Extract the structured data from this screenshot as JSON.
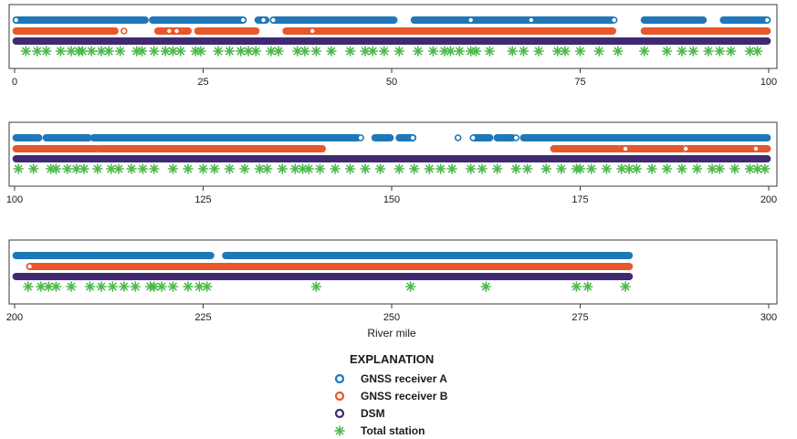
{
  "chart_data": {
    "type": "scatter",
    "xlabel": "River mile",
    "colors": {
      "gnss_a": "#1f77b8",
      "gnss_b": "#e8572a",
      "dsm": "#3f2a72",
      "total_station": "#4cba4a"
    },
    "legend": {
      "title": "EXPLANATION",
      "placement": "bottom-center",
      "items": [
        {
          "key": "gnss_a",
          "label": "GNSS receiver A",
          "marker": "open-circle"
        },
        {
          "key": "gnss_b",
          "label": "GNSS receiver B",
          "marker": "open-circle"
        },
        {
          "key": "dsm",
          "label": "DSM",
          "marker": "open-circle"
        },
        {
          "key": "total_station",
          "label": "Total station",
          "marker": "asterisk"
        }
      ]
    },
    "panels": [
      {
        "xlim": [
          0,
          100
        ],
        "ticks": [
          0,
          25,
          50,
          75,
          100
        ],
        "series": [
          {
            "key": "gnss_a",
            "segments": [
              [
                0.2,
                17.3
              ],
              [
                18.3,
                30.3
              ],
              [
                32.3,
                33.3
              ],
              [
                34.3,
                50.3
              ],
              [
                53.0,
                79.3
              ],
              [
                83.5,
                91.3
              ],
              [
                94.0,
                99.8
              ]
            ],
            "single_points": [
              0.2,
              30.3,
              33.0,
              34.3,
              60.5,
              68.5,
              79.5,
              99.8
            ]
          },
          {
            "key": "gnss_b",
            "segments": [
              [
                0.2,
                13.3
              ],
              [
                19.0,
                23.0
              ],
              [
                24.3,
                32.0
              ],
              [
                36.0,
                79.3
              ],
              [
                83.5,
                99.8
              ]
            ],
            "single_points": [
              14.5,
              20.5,
              21.5,
              39.5
            ]
          },
          {
            "key": "dsm",
            "segments": [
              [
                0.2,
                99.8
              ]
            ],
            "single_points": []
          }
        ],
        "total_station": [
          1.5,
          3.0,
          4.2,
          6.1,
          7.5,
          8.5,
          9.0,
          10.2,
          11.5,
          12.5,
          14.0,
          16.2,
          16.9,
          18.5,
          20.0,
          21.0,
          22.0,
          24.0,
          24.7,
          27.0,
          28.5,
          30.0,
          31.0,
          32.0,
          34.0,
          35.0,
          37.5,
          38.5,
          40.0,
          42.0,
          44.5,
          46.5,
          47.5,
          49.0,
          51.0,
          53.5,
          55.5,
          57.0,
          57.8,
          59.0,
          60.5,
          61.2,
          63.0,
          66.0,
          67.5,
          69.5,
          72.0,
          73.0,
          75.0,
          77.5,
          80.0,
          83.5,
          86.5,
          88.5,
          90.0,
          92.0,
          93.5,
          95.0,
          97.5,
          98.5
        ]
      },
      {
        "xlim": [
          100,
          200
        ],
        "ticks": [
          100,
          125,
          150,
          175,
          200
        ],
        "series": [
          {
            "key": "gnss_a",
            "segments": [
              [
                100.2,
                103.2
              ],
              [
                104.2,
                109.8
              ],
              [
                110.5,
                145.5
              ],
              [
                147.8,
                149.8
              ],
              [
                151.0,
                152.8
              ],
              [
                161.0,
                163.0
              ],
              [
                164.0,
                166.0
              ],
              [
                167.5,
                199.8
              ]
            ],
            "single_points": [
              145.9,
              152.8,
              158.8,
              160.8,
              166.5
            ]
          },
          {
            "key": "gnss_b",
            "segments": [
              [
                100.2,
                110.8
              ],
              [
                111.2,
                140.8
              ],
              [
                171.5,
                180.0
              ],
              [
                180.3,
                188.5
              ],
              [
                189.0,
                198.0
              ],
              [
                198.3,
                199.8
              ]
            ],
            "single_points": [
              181.0,
              189.0,
              198.3
            ]
          },
          {
            "key": "dsm",
            "segments": [
              [
                100.2,
                199.8
              ]
            ],
            "single_points": []
          }
        ],
        "total_station": [
          100.5,
          102.5,
          104.8,
          105.5,
          107.0,
          108.2,
          109.2,
          111.0,
          112.8,
          113.8,
          115.5,
          117.0,
          118.5,
          121.0,
          123.0,
          125.0,
          126.5,
          128.5,
          130.5,
          132.5,
          133.5,
          135.5,
          137.2,
          138.2,
          139.0,
          140.5,
          142.5,
          144.5,
          146.5,
          148.5,
          151.0,
          153.0,
          155.0,
          156.5,
          158.0,
          160.5,
          162.0,
          164.0,
          166.5,
          168.0,
          170.5,
          172.5,
          174.5,
          175.0,
          176.5,
          178.5,
          180.5,
          181.5,
          182.5,
          184.5,
          186.5,
          188.5,
          190.5,
          192.5,
          193.5,
          195.5,
          197.5,
          198.5,
          199.5
        ]
      },
      {
        "xlim": [
          200,
          300
        ],
        "ticks": [
          200,
          225,
          250,
          275,
          300
        ],
        "series": [
          {
            "key": "gnss_a",
            "segments": [
              [
                200.2,
                209.5
              ],
              [
                209.7,
                226.0
              ],
              [
                228.0,
                281.5
              ]
            ],
            "single_points": []
          },
          {
            "key": "gnss_b",
            "segments": [
              [
                202.0,
                281.5
              ]
            ],
            "single_points": [
              202.0
            ]
          },
          {
            "key": "dsm",
            "segments": [
              [
                200.2,
                281.5
              ]
            ],
            "single_points": []
          }
        ],
        "total_station": [
          201.8,
          203.5,
          204.5,
          205.5,
          207.5,
          210.0,
          211.5,
          213.0,
          214.5,
          216.0,
          218.0,
          218.5,
          219.5,
          221.0,
          223.0,
          224.5,
          225.5,
          240.0,
          252.5,
          262.5,
          274.5,
          276.0,
          281.0
        ]
      }
    ]
  }
}
